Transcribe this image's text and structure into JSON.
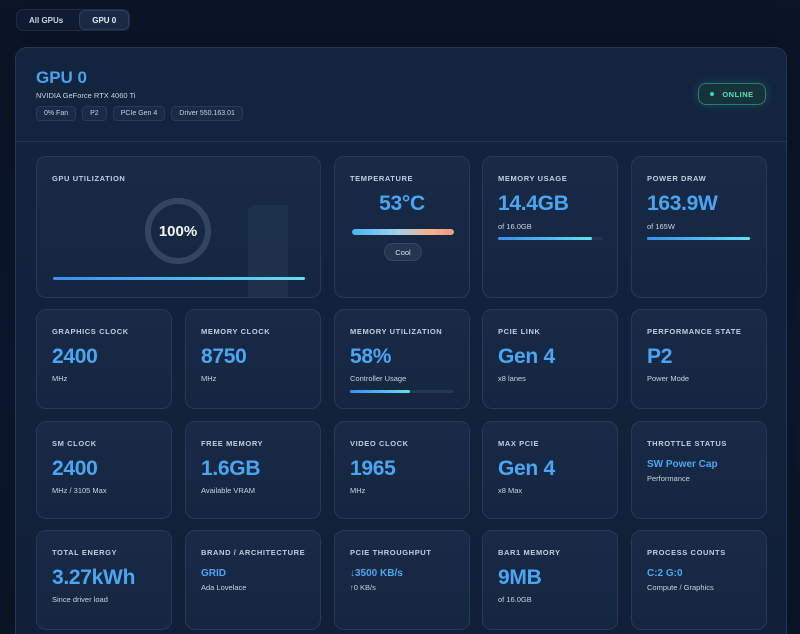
{
  "tabs": [
    {
      "label": "All GPUs",
      "active": false
    },
    {
      "label": "GPU 0",
      "active": true
    }
  ],
  "gpu": {
    "title": "GPU 0",
    "model": "NVIDIA GeForce RTX 4060 Ti",
    "chips": [
      "0%  Fan",
      "P2",
      "PCIe Gen  4",
      "Driver 550.163.01"
    ],
    "status": "ONLINE"
  },
  "utilization": {
    "title": "GPU UTILIZATION",
    "value": "100%",
    "percent": 100
  },
  "temperature": {
    "title": "TEMPERATURE",
    "value": "53°C",
    "badge": "Cool"
  },
  "memory_usage": {
    "title": "MEMORY USAGE",
    "value": "14.4GB",
    "sub": "of 16.0GB",
    "percent": 90
  },
  "power": {
    "title": "POWER DRAW",
    "value": "163.9W",
    "sub": "of 165W",
    "percent": 99
  },
  "graphics_clock": {
    "title": "GRAPHICS CLOCK",
    "value": "2400",
    "sub": "MHz"
  },
  "memory_clock": {
    "title": "MEMORY CLOCK",
    "value": "8750",
    "sub": "MHz"
  },
  "memory_util": {
    "title": "MEMORY UTILIZATION",
    "value": "58%",
    "sub": "Controller Usage",
    "percent": 58
  },
  "pcie_link": {
    "title": "PCIE LINK",
    "value": "Gen 4",
    "sub": "x8 lanes"
  },
  "perf_state": {
    "title": "PERFORMANCE STATE",
    "value": "P2",
    "sub": "Power Mode"
  },
  "sm_clock": {
    "title": "SM CLOCK",
    "value": "2400",
    "sub": "MHz / 3105 Max"
  },
  "free_memory": {
    "title": "FREE MEMORY",
    "value": "1.6GB",
    "sub": "Available VRAM"
  },
  "video_clock": {
    "title": "VIDEO CLOCK",
    "value": "1965",
    "sub": "MHz"
  },
  "max_pcie": {
    "title": "MAX PCIE",
    "value": "Gen 4",
    "sub": "x8 Max"
  },
  "throttle": {
    "title": "THROTTLE STATUS",
    "value": "SW Power Cap",
    "sub": "Performance"
  },
  "total_energy": {
    "title": "TOTAL ENERGY",
    "value": "3.27kWh",
    "sub": "Since driver load"
  },
  "brand": {
    "title": "BRAND / ARCHITECTURE",
    "value": "GRID",
    "sub": "Ada Lovelace"
  },
  "pcie_throughput": {
    "title": "PCIE THROUGHPUT",
    "value": "↓3500 KB/s",
    "sub": "↑0 KB/s"
  },
  "bar1": {
    "title": "BAR1 MEMORY",
    "value": "9MB",
    "sub": "of 16.0GB"
  },
  "process_counts": {
    "title": "PROCESS COUNTS",
    "value": "C:2 G:0",
    "sub": "Compute / Graphics"
  },
  "colors": {
    "accent": "#4aa6f2",
    "online": "#52e0bb",
    "bar_start": "#3a8ef0",
    "bar_end": "#63e0ee"
  }
}
